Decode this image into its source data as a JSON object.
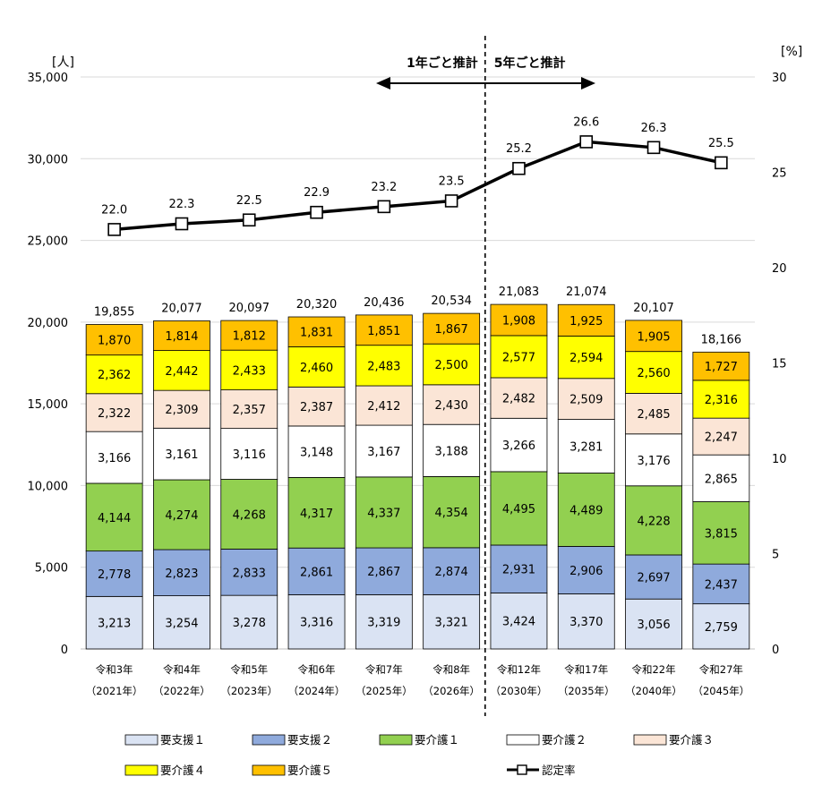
{
  "chart_data": {
    "type": "bar",
    "stacked": true,
    "left_axis_unit": "[人]",
    "right_axis_unit": "[%]",
    "ylim": [
      0,
      35000
    ],
    "y_ticks": [
      "0",
      "5,000",
      "10,000",
      "15,000",
      "20,000",
      "25,000",
      "30,000",
      "35,000"
    ],
    "y2lim": [
      0,
      30
    ],
    "y2_ticks": [
      "0",
      "5",
      "10",
      "15",
      "20",
      "25",
      "30"
    ],
    "grid": "horizontal",
    "legend_position": "bottom",
    "categories": [
      {
        "era": "令和3年",
        "year": "（2021年）"
      },
      {
        "era": "令和4年",
        "year": "（2022年）"
      },
      {
        "era": "令和5年",
        "year": "（2023年）"
      },
      {
        "era": "令和6年",
        "year": "（2024年）"
      },
      {
        "era": "令和7年",
        "year": "（2025年）"
      },
      {
        "era": "令和8年",
        "year": "（2026年）"
      },
      {
        "era": "令和12年",
        "year": "（2030年）"
      },
      {
        "era": "令和17年",
        "year": "（2035年）"
      },
      {
        "era": "令和22年",
        "year": "（2040年）"
      },
      {
        "era": "令和27年",
        "year": "（2045年）"
      }
    ],
    "series": [
      {
        "name": "要支援１",
        "color": "#dae3f3",
        "values": [
          3213,
          3254,
          3278,
          3316,
          3319,
          3321,
          3424,
          3370,
          3056,
          2759
        ],
        "labels": [
          "3,213",
          "3,254",
          "3,278",
          "3,316",
          "3,319",
          "3,321",
          "3,424",
          "3,370",
          "3,056",
          "2,759"
        ]
      },
      {
        "name": "要支援２",
        "color": "#8faadc",
        "values": [
          2778,
          2823,
          2833,
          2861,
          2867,
          2874,
          2931,
          2906,
          2697,
          2437
        ],
        "labels": [
          "2,778",
          "2,823",
          "2,833",
          "2,861",
          "2,867",
          "2,874",
          "2,931",
          "2,906",
          "2,697",
          "2,437"
        ]
      },
      {
        "name": "要介護１",
        "color": "#92d050",
        "values": [
          4144,
          4274,
          4268,
          4317,
          4337,
          4354,
          4495,
          4489,
          4228,
          3815
        ],
        "labels": [
          "4,144",
          "4,274",
          "4,268",
          "4,317",
          "4,337",
          "4,354",
          "4,495",
          "4,489",
          "4,228",
          "3,815"
        ]
      },
      {
        "name": "要介護２",
        "color": "#ffffff",
        "values": [
          3166,
          3161,
          3116,
          3148,
          3167,
          3188,
          3266,
          3281,
          3176,
          2865
        ],
        "labels": [
          "3,166",
          "3,161",
          "3,116",
          "3,148",
          "3,167",
          "3,188",
          "3,266",
          "3,281",
          "3,176",
          "2,865"
        ]
      },
      {
        "name": "要介護３",
        "color": "#fbe5d6",
        "values": [
          2322,
          2309,
          2357,
          2387,
          2412,
          2430,
          2482,
          2509,
          2485,
          2247
        ],
        "labels": [
          "2,322",
          "2,309",
          "2,357",
          "2,387",
          "2,412",
          "2,430",
          "2,482",
          "2,509",
          "2,485",
          "2,247"
        ]
      },
      {
        "name": "要介護４",
        "color": "#ffff00",
        "values": [
          2362,
          2442,
          2433,
          2460,
          2483,
          2500,
          2577,
          2594,
          2560,
          2316
        ],
        "labels": [
          "2,362",
          "2,442",
          "2,433",
          "2,460",
          "2,483",
          "2,500",
          "2,577",
          "2,594",
          "2,560",
          "2,316"
        ]
      },
      {
        "name": "要介護５",
        "color": "#ffc000",
        "values": [
          1870,
          1814,
          1812,
          1831,
          1851,
          1867,
          1908,
          1925,
          1905,
          1727
        ],
        "labels": [
          "1,870",
          "1,814",
          "1,812",
          "1,831",
          "1,851",
          "1,867",
          "1,908",
          "1,925",
          "1,905",
          "1,727"
        ]
      }
    ],
    "totals": [
      "19,855",
      "20,077",
      "20,097",
      "20,320",
      "20,436",
      "20,534",
      "21,083",
      "21,074",
      "20,107",
      "18,166"
    ],
    "rate": {
      "name": "認定率",
      "axis": "right",
      "values": [
        22.0,
        22.3,
        22.5,
        22.9,
        23.2,
        23.5,
        25.2,
        26.6,
        26.3,
        25.5
      ],
      "labels": [
        "22.0",
        "22.3",
        "22.5",
        "22.9",
        "23.2",
        "23.5",
        "25.2",
        "26.6",
        "26.3",
        "25.5"
      ]
    },
    "annotations": {
      "left": "1年ごと推計",
      "right": "5年ごと推計",
      "divider_between": [
        5,
        6
      ]
    }
  }
}
